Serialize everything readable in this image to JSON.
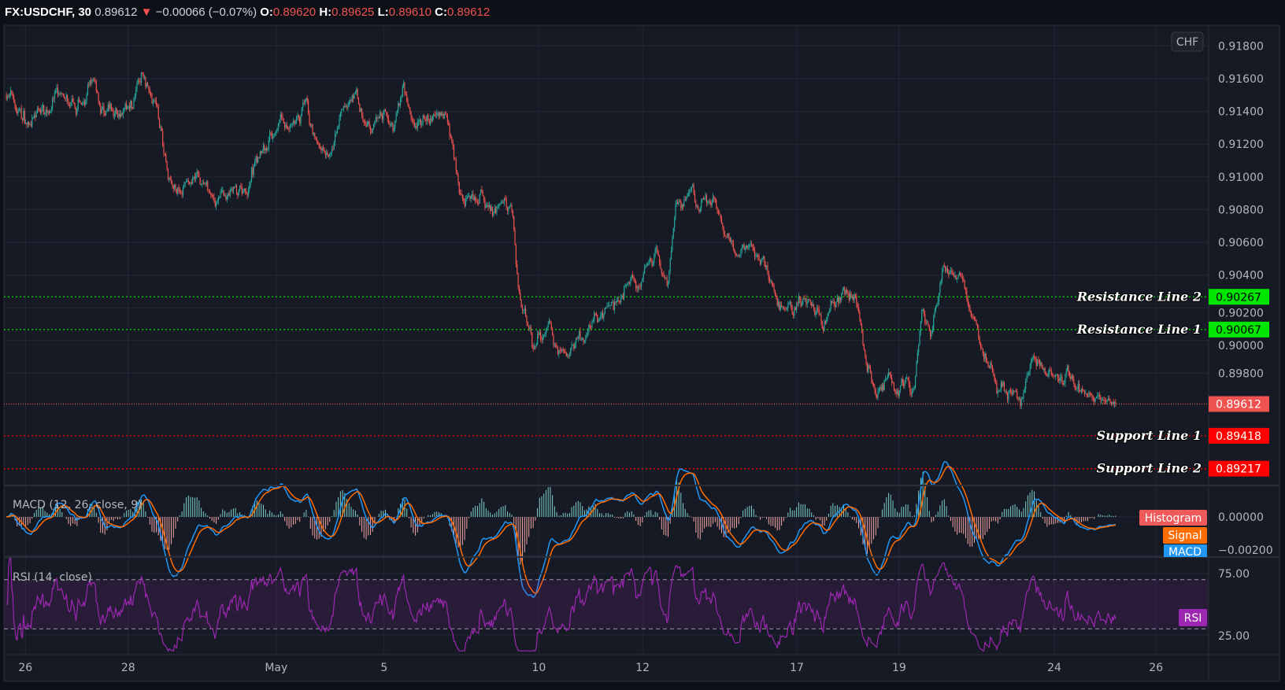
{
  "header": {
    "symbol": "FX:USDCHF, 30",
    "last": "0.89612",
    "change": "−0.00066 (−0.07%)",
    "o_label": "O:",
    "o": "0.89620",
    "h_label": "H:",
    "h": "0.89625",
    "l_label": "L:",
    "l": "0.89610",
    "c_label": "C:",
    "c": "0.89612"
  },
  "currency_badge": "CHF",
  "colors": {
    "up": "#26a69a",
    "down": "#ef5350",
    "macd": "#2196f3",
    "signal": "#ff6d00",
    "rsi": "#9c27b0",
    "resistance": "#00e600",
    "support": "#ff0000"
  },
  "levels": [
    {
      "name": "Resistance Line 2",
      "price": 0.90267,
      "value": "0.90267",
      "kind": "resistance"
    },
    {
      "name": "Resistance Line 1",
      "price": 0.90067,
      "value": "0.90067",
      "kind": "resistance"
    },
    {
      "name": "",
      "price": 0.89612,
      "value": "0.89612",
      "kind": "current"
    },
    {
      "name": "Support Line 1",
      "price": 0.89418,
      "value": "0.89418",
      "kind": "support"
    },
    {
      "name": "Support Line 2",
      "price": 0.89217,
      "value": "0.89217",
      "kind": "support"
    }
  ],
  "macd_pane": {
    "title": "MACD (12, 26, close, 9)",
    "tags": [
      "Histogram",
      "Signal",
      "MACD"
    ],
    "ticks": [
      "0.00000",
      "−0.00200"
    ]
  },
  "rsi_pane": {
    "title": "RSI (14, close)",
    "tag": "RSI",
    "ticks": [
      "75.00",
      "25.00"
    ]
  },
  "chart_data": {
    "type": "candlestick",
    "title": "FX:USDCHF, 30",
    "ylim": [
      0.8905,
      0.9185
    ],
    "y_ticks": [
      "0.91800",
      "0.91600",
      "0.91400",
      "0.91200",
      "0.91000",
      "0.90800",
      "0.90600",
      "0.90400",
      "0.90200",
      "0.90000",
      "0.89800"
    ],
    "x_ticks": [
      {
        "label": "26",
        "day": 0
      },
      {
        "label": "28",
        "day": 2
      },
      {
        "label": "May",
        "day": 4.88
      },
      {
        "label": "5",
        "day": 6.98
      },
      {
        "label": "10",
        "day": 9.99
      },
      {
        "label": "12",
        "day": 12.01
      },
      {
        "label": "17",
        "day": 15.01
      },
      {
        "label": "19",
        "day": 17.0
      },
      {
        "label": "24",
        "day": 20.02
      },
      {
        "label": "26",
        "day": 22.0
      }
    ],
    "close_path_day": [
      -0.37,
      0.14,
      0.54,
      0.94,
      1.34,
      1.58,
      2.06,
      2.3,
      2.54,
      2.78,
      3.01,
      3.33,
      3.57,
      3.81,
      4.29,
      4.61,
      4.93,
      5.25,
      5.49,
      5.65,
      5.89,
      6.36,
      6.6,
      7.16,
      7.35,
      7.56,
      7.96,
      8.2,
      8.44,
      8.76,
      9.08,
      9.47,
      9.59,
      9.87,
      10.19,
      10.51,
      10.83,
      11.31,
      11.63,
      11.95,
      12.26,
      12.5,
      12.66,
      12.98,
      13.38,
      13.7,
      14.02,
      14.42,
      14.66,
      14.98,
      15.29,
      15.53,
      15.93,
      16.22,
      16.38,
      16.57,
      17.05,
      17.29,
      17.45,
      17.61,
      17.85,
      18.09,
      18.33,
      18.56,
      18.88,
      19.36,
      19.6,
      19.92,
      20.24,
      20.4,
      20.72,
      21.23
    ],
    "close_path_price": [
      0.915,
      0.913,
      0.915,
      0.914,
      0.9155,
      0.9135,
      0.9145,
      0.9163,
      0.915,
      0.91,
      0.909,
      0.91,
      0.9088,
      0.9085,
      0.909,
      0.912,
      0.9135,
      0.913,
      0.914,
      0.911,
      0.9115,
      0.915,
      0.9135,
      0.9135,
      0.916,
      0.9135,
      0.913,
      0.914,
      0.91,
      0.9085,
      0.908,
      0.9085,
      0.903,
      0.9,
      0.901,
      0.899,
      0.9005,
      0.9015,
      0.9025,
      0.904,
      0.9052,
      0.9035,
      0.9085,
      0.909,
      0.908,
      0.9062,
      0.906,
      0.904,
      0.902,
      0.902,
      0.9022,
      0.901,
      0.9032,
      0.902,
      0.8985,
      0.897,
      0.8975,
      0.8975,
      0.902,
      0.9,
      0.9038,
      0.9035,
      0.9025,
      0.9,
      0.8975,
      0.8965,
      0.899,
      0.898,
      0.898,
      0.8975,
      0.8968,
      0.89612
    ],
    "bars_per_day": 48,
    "macd": {
      "fast": 12,
      "slow": 26,
      "signal": 9,
      "ylim": [
        -0.0024,
        0.0014
      ]
    },
    "rsi": {
      "period": 14,
      "upper": 70,
      "lower": 30,
      "ylim": [
        10,
        90
      ]
    }
  }
}
